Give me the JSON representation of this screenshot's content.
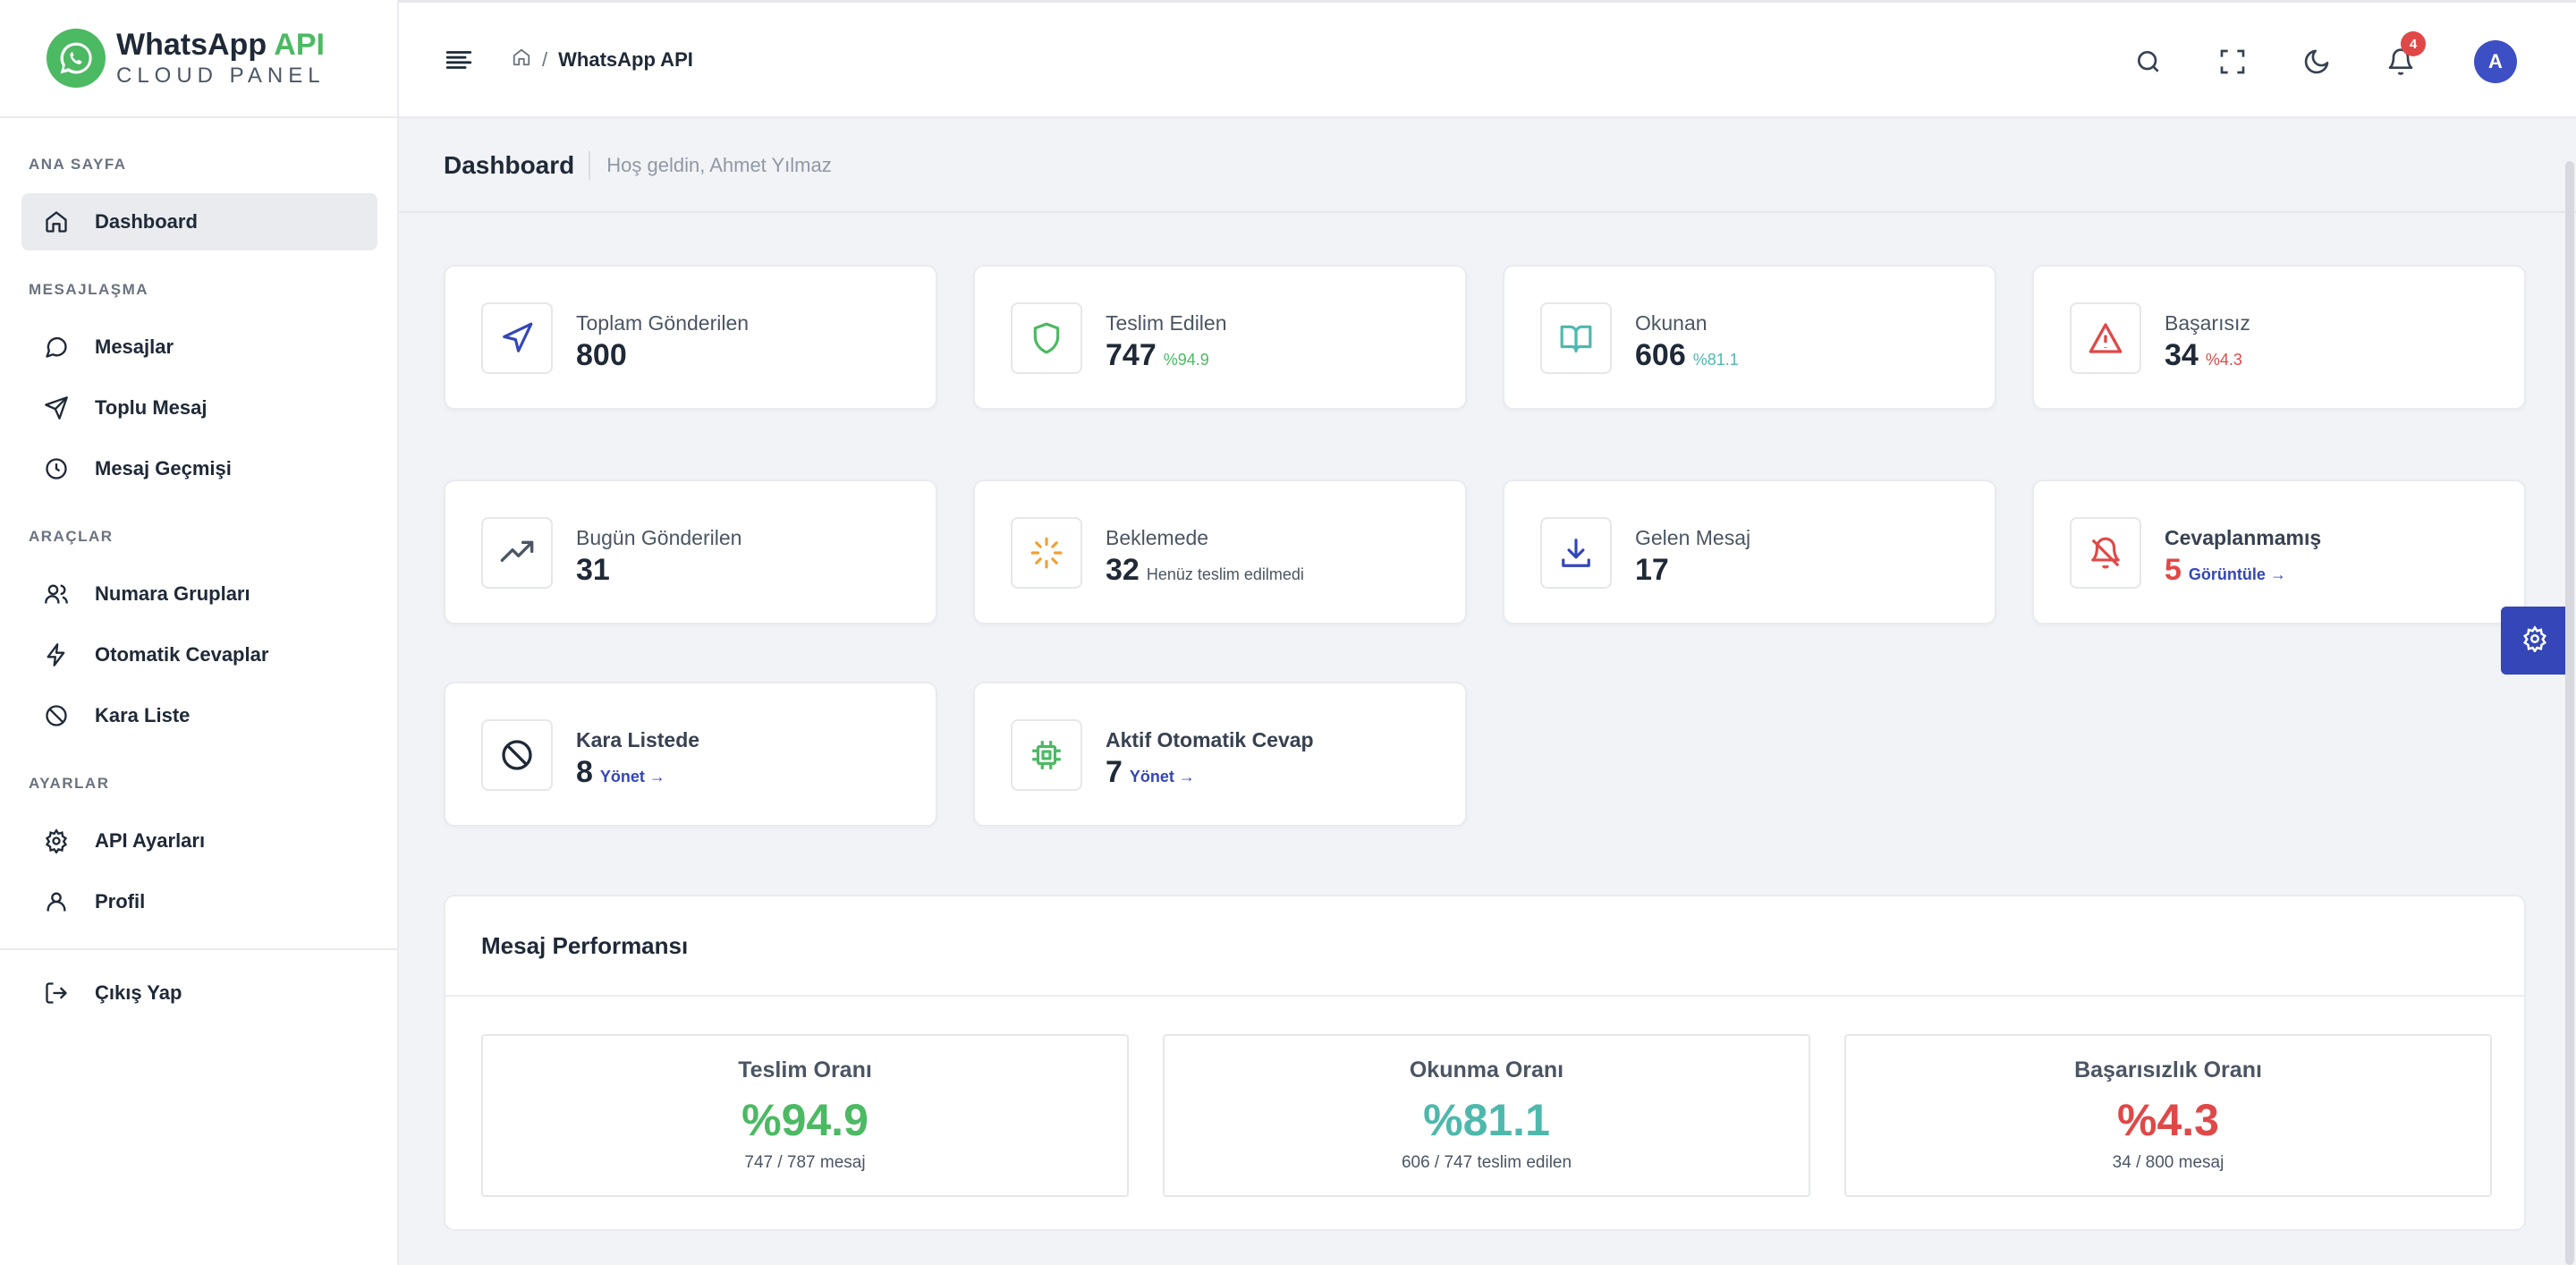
{
  "brand": {
    "title_main": "WhatsApp",
    "title_accent": "API",
    "subtitle": "CLOUD PANEL"
  },
  "sidebar": {
    "sections": [
      {
        "label": "ANA SAYFA"
      },
      {
        "label": "MESAJLAŞMA"
      },
      {
        "label": "ARAÇLAR"
      },
      {
        "label": "AYARLAR"
      }
    ],
    "items": [
      {
        "label": "Dashboard",
        "icon": "home-icon",
        "active": true
      },
      {
        "label": "Mesajlar",
        "icon": "message-circle-icon"
      },
      {
        "label": "Toplu Mesaj",
        "icon": "send-icon"
      },
      {
        "label": "Mesaj Geçmişi",
        "icon": "clock-icon"
      },
      {
        "label": "Numara Grupları",
        "icon": "users-icon"
      },
      {
        "label": "Otomatik Cevaplar",
        "icon": "zap-icon"
      },
      {
        "label": "Kara Liste",
        "icon": "ban-icon"
      },
      {
        "label": "API Ayarları",
        "icon": "settings-icon"
      },
      {
        "label": "Profil",
        "icon": "user-icon"
      }
    ],
    "logout": {
      "label": "Çıkış Yap",
      "icon": "logout-icon"
    }
  },
  "topbar": {
    "breadcrumb": {
      "separator": "/",
      "current": "WhatsApp API"
    },
    "notifications_count": "4",
    "avatar_initial": "A"
  },
  "page": {
    "title": "Dashboard",
    "subtitle": "Hoş geldin, Ahmet Yılmaz"
  },
  "stats": [
    {
      "label": "Toplam Gönderilen",
      "value": "800",
      "suffix": "",
      "icon": "navigation-icon",
      "color": "#3446b8"
    },
    {
      "label": "Teslim Edilen",
      "value": "747",
      "suffix": "%94.9",
      "icon": "shield-icon",
      "color": "#4cb963"
    },
    {
      "label": "Okunan",
      "value": "606",
      "suffix": "%81.1",
      "icon": "book-open-icon",
      "color": "#4fb8ad"
    },
    {
      "label": "Başarısız",
      "value": "34",
      "suffix": "%4.3",
      "icon": "alert-triangle-icon",
      "color": "#e04848"
    },
    {
      "label": "Bugün Gönderilen",
      "value": "31",
      "suffix": "",
      "icon": "trending-up-icon",
      "color": "#4b5563"
    },
    {
      "label": "Beklemede",
      "value": "32",
      "suffix": "Henüz teslim edilmedi",
      "icon": "loader-icon",
      "color": "#f0a030"
    },
    {
      "label": "Gelen Mesaj",
      "value": "17",
      "suffix": "",
      "icon": "download-icon",
      "color": "#3446b8"
    },
    {
      "label": "Cevaplanmamış",
      "value": "5",
      "suffix": "Görüntüle →",
      "icon": "bell-off-icon",
      "color": "#e04848"
    },
    {
      "label": "Kara Listede",
      "value": "8",
      "suffix": "Yönet →",
      "icon": "ban-icon",
      "color": "#1f2937"
    },
    {
      "label": "Aktif Otomatik Cevap",
      "value": "7",
      "suffix": "Yönet →",
      "icon": "cpu-icon",
      "color": "#4cb963"
    }
  ],
  "performance": {
    "title": "Mesaj Performansı",
    "rates": [
      {
        "label": "Teslim Oranı",
        "value": "%94.9",
        "sub": "747 / 787 mesaj",
        "color": "#4cb963"
      },
      {
        "label": "Okunma Oranı",
        "value": "%81.1",
        "sub": "606 / 747 teslim edilen",
        "color": "#4fb8ad"
      },
      {
        "label": "Başarısızlık Oranı",
        "value": "%4.3",
        "sub": "34 / 800 mesaj",
        "color": "#e04848"
      }
    ]
  }
}
